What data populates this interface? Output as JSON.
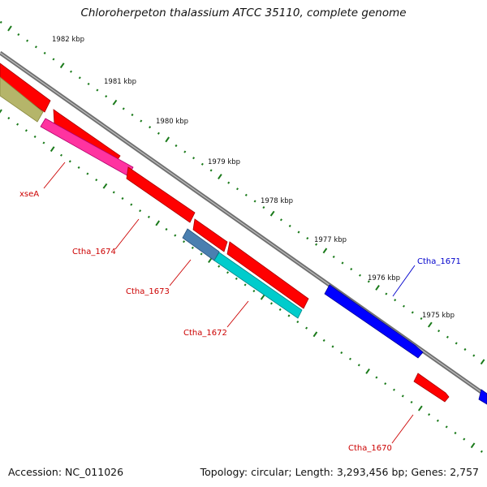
{
  "title": "Chloroherpeton thalassium ATCC 35110, complete genome",
  "footer": {
    "accession": "Accession: NC_011026",
    "topology": "Topology: circular; Length: 3,293,456 bp; Genes: 2,757"
  },
  "colors": {
    "backbone": "#808080",
    "tick": "#1a7a1a",
    "red_gene": "#ff0000",
    "red_label": "#cc0000",
    "blue_gene": "#0000ff",
    "blue_label": "#0000cc",
    "olive_gene": "#b5b56a",
    "magenta_gene": "#ff33a0",
    "steel_gene": "#4a7fb0",
    "cyan_gene": "#00cccc"
  },
  "kbp_ticks": [
    "1982 kbp",
    "1981 kbp",
    "1980 kbp",
    "1979 kbp",
    "1978 kbp",
    "1977 kbp",
    "1976 kbp",
    "1975 kbp"
  ],
  "gene_labels": [
    {
      "name": "xseA",
      "color": "red"
    },
    {
      "name": "Ctha_1674",
      "color": "red"
    },
    {
      "name": "Ctha_1673",
      "color": "red"
    },
    {
      "name": "Ctha_1672",
      "color": "red"
    },
    {
      "name": "Ctha_1671",
      "color": "blue"
    },
    {
      "name": "Ctha_1670",
      "color": "red"
    }
  ]
}
